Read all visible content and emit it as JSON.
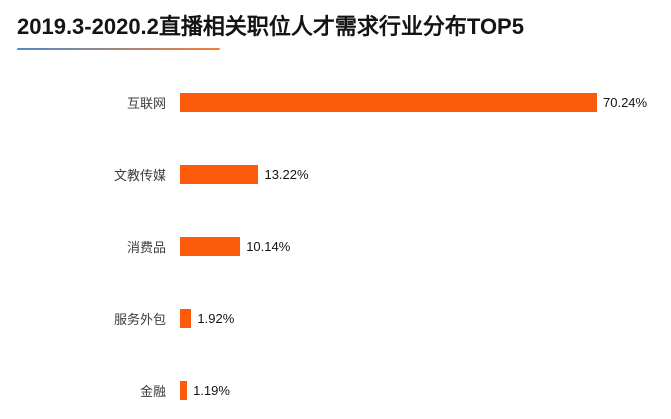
{
  "page": {
    "background": "#ffffff"
  },
  "header": {
    "title": "2019.3-2020.2直播相关职位人才需求行业分布TOP5",
    "underline_gradient_from": "#4e8cca",
    "underline_gradient_to": "#f57f35"
  },
  "chart_data": {
    "type": "bar",
    "orientation": "horizontal",
    "title": "2019.3-2020.2直播相关职位人才需求行业分布TOP5",
    "categories": [
      "互联网",
      "文教传媒",
      "消费品",
      "服务外包",
      "金融"
    ],
    "values": [
      70.24,
      13.22,
      10.14,
      1.92,
      1.19
    ],
    "value_labels": [
      "70.24%",
      "13.22%",
      "10.14%",
      "1.92%",
      "1.19%"
    ],
    "xlabel": "",
    "ylabel": "",
    "xlim": [
      0,
      70.24
    ],
    "bar_color": "#fb5a0b",
    "label_color": "#3c3c3c",
    "value_color": "#141414",
    "grid": false,
    "legend": false,
    "sort": "descending"
  }
}
